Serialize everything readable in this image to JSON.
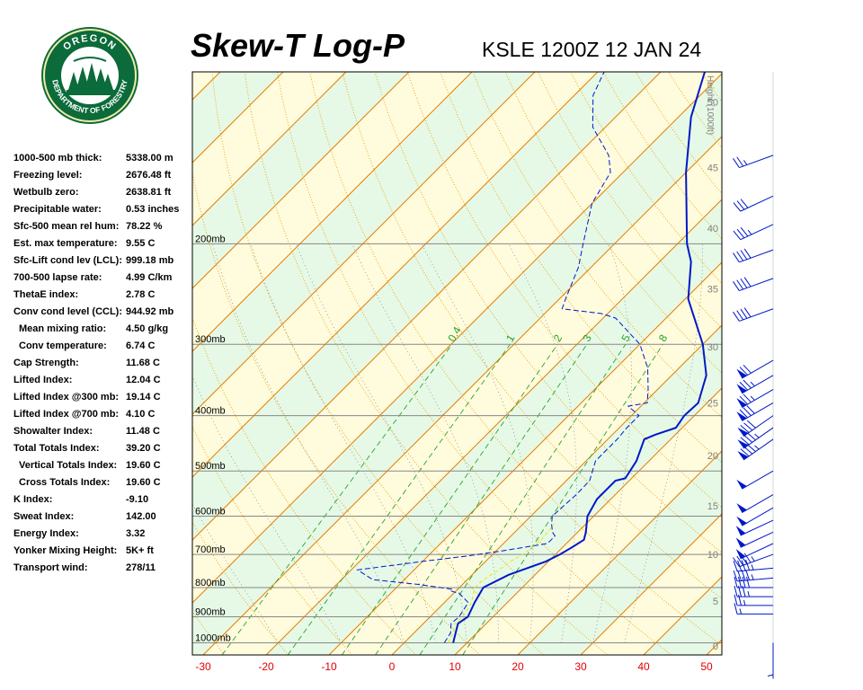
{
  "header": {
    "title": "Skew-T Log-P",
    "station": "KSLE 1200Z 12 JAN 24"
  },
  "logo": {
    "top_text": "OREGON",
    "bottom_text": "DEPARTMENT OF FORESTRY",
    "colors": {
      "ring": "#0b6b3a",
      "inner": "#f4e9a6",
      "trees": "#0b6b3a"
    }
  },
  "indices": [
    {
      "label": "1000-500 mb thick:",
      "value": "5338.00 m",
      "indent": false
    },
    {
      "label": "Freezing level:",
      "value": "2676.48 ft",
      "indent": false
    },
    {
      "label": "Wetbulb zero:",
      "value": "2638.81 ft",
      "indent": false
    },
    {
      "label": "Precipitable water:",
      "value": "0.53 inches",
      "indent": false
    },
    {
      "label": "Sfc-500 mean rel hum:",
      "value": "78.22 %",
      "indent": false
    },
    {
      "label": "Est. max temperature:",
      "value": "9.55 C",
      "indent": false
    },
    {
      "label": "Sfc-Lift cond lev (LCL):",
      "value": "999.18 mb",
      "indent": false
    },
    {
      "label": "700-500 lapse rate:",
      "value": "4.99 C/km",
      "indent": false
    },
    {
      "label": "ThetaE index:",
      "value": "2.78 C",
      "indent": false
    },
    {
      "label": "Conv cond level (CCL):",
      "value": "944.92 mb",
      "indent": false
    },
    {
      "label": "Mean mixing ratio:",
      "value": "4.50 g/kg",
      "indent": true
    },
    {
      "label": "Conv temperature:",
      "value": "6.74 C",
      "indent": true
    },
    {
      "label": "Cap Strength:",
      "value": "11.68 C",
      "indent": false
    },
    {
      "label": "Lifted Index:",
      "value": "12.04 C",
      "indent": false
    },
    {
      "label": "Lifted Index @300 mb:",
      "value": "19.14 C",
      "indent": false
    },
    {
      "label": "Lifted Index @700 mb:",
      "value": "4.10 C",
      "indent": false
    },
    {
      "label": "Showalter Index:",
      "value": "11.48 C",
      "indent": false
    },
    {
      "label": "Total Totals Index:",
      "value": "39.20 C",
      "indent": false
    },
    {
      "label": "Vertical Totals Index:",
      "value": "19.60 C",
      "indent": true
    },
    {
      "label": "Cross Totals Index:",
      "value": "19.60 C",
      "indent": true
    },
    {
      "label": "K Index:",
      "value": "-9.10",
      "indent": false
    },
    {
      "label": "Sweat Index:",
      "value": "142.00",
      "indent": false
    },
    {
      "label": "Energy Index:",
      "value": "3.32",
      "indent": false
    },
    {
      "label": "Yonker Mixing Height:",
      "value": "5K+ ft",
      "indent": false
    },
    {
      "label": "Transport wind:",
      "value": "278/11",
      "indent": false
    }
  ],
  "chart_data": {
    "type": "line",
    "xlabel": "",
    "ylabel": "",
    "x_ticks": [
      "-30",
      "-20",
      "-10",
      "0",
      "10",
      "20",
      "30",
      "40",
      "50"
    ],
    "pressure_levels": [
      {
        "p": 200,
        "label": "200mb"
      },
      {
        "p": 300,
        "label": "300mb"
      },
      {
        "p": 400,
        "label": "400mb"
      },
      {
        "p": 500,
        "label": "500mb"
      },
      {
        "p": 600,
        "label": "600mb"
      },
      {
        "p": 700,
        "label": "700mb"
      },
      {
        "p": 800,
        "label": "800mb"
      },
      {
        "p": 900,
        "label": "900mb"
      },
      {
        "p": 1000,
        "label": "1000mb"
      }
    ],
    "height_axis": {
      "title": "Height (1000ft)",
      "ticks": [
        {
          "p": 1012,
          "label": "0"
        },
        {
          "p": 845,
          "label": "5"
        },
        {
          "p": 700,
          "label": "10"
        },
        {
          "p": 575,
          "label": "15"
        },
        {
          "p": 470,
          "label": "20"
        },
        {
          "p": 380,
          "label": "25"
        },
        {
          "p": 303,
          "label": "30"
        },
        {
          "p": 240,
          "label": "35"
        },
        {
          "p": 188,
          "label": "40"
        },
        {
          "p": 147,
          "label": "45"
        },
        {
          "p": 113,
          "label": "50"
        }
      ]
    },
    "mixing_ratio_labels": [
      "0.4",
      "1",
      "2",
      "3",
      "5",
      "8"
    ],
    "series": [
      {
        "role": "temperature",
        "color": "#0018c8",
        "points": [
          [
            1000,
            7.8
          ],
          [
            960,
            6.6
          ],
          [
            925,
            5.5
          ],
          [
            900,
            6.0
          ],
          [
            850,
            4.8
          ],
          [
            800,
            3.8
          ],
          [
            760,
            5.8
          ],
          [
            720,
            9.6
          ],
          [
            700,
            10.7
          ],
          [
            680,
            11.5
          ],
          [
            660,
            12.2
          ],
          [
            640,
            11.3
          ],
          [
            600,
            9.0
          ],
          [
            560,
            7.8
          ],
          [
            520,
            7.8
          ],
          [
            515,
            9.0
          ],
          [
            480,
            8.0
          ],
          [
            440,
            5.8
          ],
          [
            432,
            6.8
          ],
          [
            420,
            9.0
          ],
          [
            400,
            8.4
          ],
          [
            380,
            8.6
          ],
          [
            340,
            5.5
          ],
          [
            300,
            0.0
          ],
          [
            250,
            -9.5
          ],
          [
            215,
            -15.0
          ],
          [
            200,
            -18.5
          ],
          [
            150,
            -30.0
          ],
          [
            120,
            -38.0
          ],
          [
            100,
            -43.0
          ]
        ]
      },
      {
        "role": "dewpoint",
        "color": "#0018c8",
        "points": [
          [
            1000,
            6.4
          ],
          [
            960,
            5.8
          ],
          [
            925,
            4.4
          ],
          [
            900,
            4.6
          ],
          [
            850,
            3.8
          ],
          [
            820,
            1.0
          ],
          [
            810,
            -1.0
          ],
          [
            805,
            -1.0
          ],
          [
            790,
            -7.0
          ],
          [
            775,
            -15.0
          ],
          [
            745,
            -19.0
          ],
          [
            720,
            -10.0
          ],
          [
            705,
            -4.0
          ],
          [
            690,
            1.0
          ],
          [
            670,
            7.0
          ],
          [
            650,
            7.0
          ],
          [
            640,
            6.0
          ],
          [
            620,
            4.6
          ],
          [
            600,
            3.4
          ],
          [
            550,
            3.8
          ],
          [
            520,
            3.7
          ],
          [
            480,
            1.5
          ],
          [
            440,
            1.5
          ],
          [
            420,
            1.2
          ],
          [
            400,
            1.2
          ],
          [
            385,
            -2.0
          ],
          [
            380,
            0.5
          ],
          [
            360,
            -1.5
          ],
          [
            330,
            -5.0
          ],
          [
            300,
            -10.0
          ],
          [
            270,
            -18.0
          ],
          [
            265,
            -21.0
          ],
          [
            260,
            -28.0
          ],
          [
            250,
            -29.0
          ],
          [
            220,
            -32.0
          ],
          [
            200,
            -35.0
          ],
          [
            170,
            -40.0
          ],
          [
            150,
            -42.0
          ],
          [
            140,
            -45.0
          ],
          [
            125,
            -52.0
          ],
          [
            110,
            -57.0
          ],
          [
            100,
            -59.0
          ]
        ]
      },
      {
        "role": "wetbulb",
        "color": "#e7e700",
        "points": [
          [
            1000,
            7.0
          ],
          [
            960,
            6.2
          ],
          [
            925,
            5.0
          ],
          [
            900,
            5.2
          ],
          [
            850,
            4.3
          ],
          [
            820,
            3.2
          ],
          [
            800,
            2.5
          ],
          [
            780,
            2.5
          ],
          [
            760,
            3.0
          ],
          [
            740,
            3.6
          ],
          [
            720,
            4.0
          ],
          [
            700,
            4.8
          ],
          [
            680,
            5.2
          ],
          [
            660,
            5.4
          ],
          [
            640,
            5.2
          ],
          [
            620,
            5.0
          ]
        ]
      }
    ],
    "wind_profile": [
      {
        "p": 1000,
        "dir": 180,
        "spd": 5
      },
      {
        "p": 890,
        "dir": 270,
        "spd": 15
      },
      {
        "p": 860,
        "dir": 270,
        "spd": 25
      },
      {
        "p": 830,
        "dir": 270,
        "spd": 35
      },
      {
        "p": 800,
        "dir": 270,
        "spd": 40
      },
      {
        "p": 770,
        "dir": 265,
        "spd": 45
      },
      {
        "p": 740,
        "dir": 265,
        "spd": 45
      },
      {
        "p": 700,
        "dir": 250,
        "spd": 45
      },
      {
        "p": 670,
        "dir": 245,
        "spd": 50
      },
      {
        "p": 640,
        "dir": 245,
        "spd": 50
      },
      {
        "p": 610,
        "dir": 245,
        "spd": 50
      },
      {
        "p": 580,
        "dir": 240,
        "spd": 50
      },
      {
        "p": 550,
        "dir": 240,
        "spd": 50
      },
      {
        "p": 500,
        "dir": 240,
        "spd": 50
      },
      {
        "p": 440,
        "dir": 235,
        "spd": 85
      },
      {
        "p": 420,
        "dir": 235,
        "spd": 85
      },
      {
        "p": 400,
        "dir": 235,
        "spd": 80
      },
      {
        "p": 380,
        "dir": 240,
        "spd": 80
      },
      {
        "p": 360,
        "dir": 240,
        "spd": 75
      },
      {
        "p": 340,
        "dir": 240,
        "spd": 75
      },
      {
        "p": 320,
        "dir": 240,
        "spd": 70
      },
      {
        "p": 260,
        "dir": 250,
        "spd": 40
      },
      {
        "p": 230,
        "dir": 250,
        "spd": 40
      },
      {
        "p": 205,
        "dir": 250,
        "spd": 40
      },
      {
        "p": 185,
        "dir": 245,
        "spd": 35
      },
      {
        "p": 165,
        "dir": 245,
        "spd": 30
      },
      {
        "p": 140,
        "dir": 250,
        "spd": 25
      }
    ],
    "colors": {
      "isotherm": "#e87e00",
      "dry_adiabat": "#e8a000",
      "moist_adiabat": "#808080",
      "mixing_ratio": "#29a329",
      "isobar": "#888888",
      "band_warm": "#fffbdd",
      "band_cool": "#e6f9e6",
      "tick_label": "#e00000",
      "wind_barb": "#0018c8"
    }
  }
}
